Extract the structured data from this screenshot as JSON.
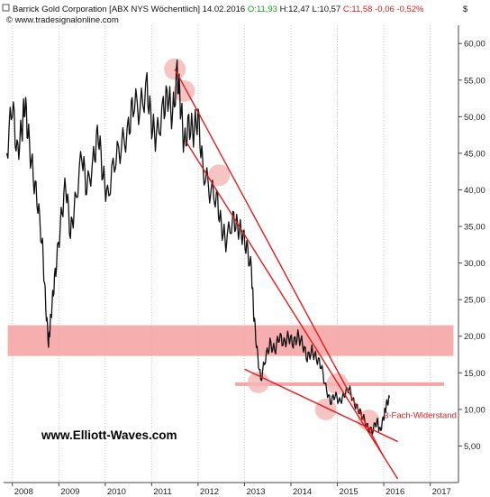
{
  "header": {
    "title": "Barrick Gold Corporation [ABX NYS  Wöchentlich]",
    "date": "14.02.2016",
    "open_label": "O:",
    "open": "11,93",
    "high_label": "H:",
    "high": "12,47",
    "low_label": "L:",
    "low": "10,57",
    "close_label": "C:",
    "close": "11,58",
    "change": "-0,06",
    "change_pct": "-0,52%",
    "source": "© www.tradesignalonline.com",
    "currency": "$"
  },
  "watermark": "www.Elliott-Waves.com",
  "colors": {
    "price": "#111111",
    "trendline": "#e31b1b",
    "zone": "#f4a0a0",
    "circle": "#f5b5b5",
    "open_green": "#1a9a1a",
    "close_red": "#d62020",
    "grid": "#c8c8c8"
  },
  "chart_data": {
    "type": "line",
    "title": "",
    "xlabel": "",
    "ylabel": "",
    "x_ticks": [
      "2008",
      "2009",
      "2010",
      "2011",
      "2012",
      "2013",
      "2014",
      "2015",
      "2016",
      "2017"
    ],
    "y_ticks": [
      "5,00",
      "10,00",
      "15,00",
      "20,00",
      "25,00",
      "30,00",
      "35,00",
      "40,00",
      "45,00",
      "50,00",
      "55,00",
      "60,00"
    ],
    "ylim": [
      0,
      62
    ],
    "xlim": [
      2007.85,
      2017.55
    ],
    "grid": "vertical dotted",
    "series": [
      {
        "style": "weekly close",
        "x": [
          2007.88,
          2008.0,
          2008.1,
          2008.2,
          2008.27,
          2008.35,
          2008.45,
          2008.55,
          2008.65,
          2008.72,
          2008.78,
          2008.82,
          2008.88,
          2008.95,
          2009.05,
          2009.15,
          2009.25,
          2009.35,
          2009.5,
          2009.6,
          2009.75,
          2009.85,
          2009.95,
          2010.05,
          2010.2,
          2010.35,
          2010.5,
          2010.6,
          2010.75,
          2010.9,
          2011.0,
          2011.1,
          2011.25,
          2011.35,
          2011.45,
          2011.55,
          2011.62,
          2011.7,
          2011.8,
          2011.9,
          2012.0,
          2012.1,
          2012.25,
          2012.4,
          2012.5,
          2012.6,
          2012.75,
          2012.85,
          2012.95,
          2013.05,
          2013.15,
          2013.2,
          2013.27,
          2013.35,
          2013.45,
          2013.55,
          2013.65,
          2013.75,
          2013.85,
          2013.95,
          2014.05,
          2014.15,
          2014.25,
          2014.35,
          2014.45,
          2014.55,
          2014.65,
          2014.75,
          2014.85,
          2014.95,
          2015.05,
          2015.15,
          2015.25,
          2015.35,
          2015.45,
          2015.55,
          2015.65,
          2015.75,
          2015.85,
          2015.92,
          2016.0,
          2016.05,
          2016.12
        ],
        "y": [
          45,
          52,
          45,
          48,
          52,
          47,
          42,
          38,
          32,
          24,
          19,
          22,
          26,
          30,
          36,
          41,
          34,
          38,
          45,
          40,
          44,
          48,
          42,
          39,
          44,
          46,
          48,
          52,
          51,
          54,
          49,
          47,
          51,
          53,
          50,
          56,
          52,
          46,
          49,
          48,
          50,
          43,
          40,
          39,
          35,
          33,
          36,
          35,
          34,
          32,
          29,
          23,
          18,
          14,
          17,
          19,
          18,
          20,
          19,
          20,
          19,
          20,
          19,
          17,
          18,
          17,
          16,
          13,
          11,
          12,
          11,
          12,
          13,
          11,
          10,
          9,
          7.5,
          7,
          8.5,
          7,
          9,
          10.5,
          11.6
        ]
      }
    ],
    "overlays": {
      "trendlines": [
        {
          "from": [
            2011.5,
            56.5
          ],
          "to": [
            2016.0,
            3.5
          ]
        },
        {
          "from": [
            2011.75,
            46.5
          ],
          "to": [
            2016.3,
            0.5
          ]
        },
        {
          "from": [
            2013.0,
            15.5
          ],
          "to": [
            2016.3,
            5.6
          ]
        }
      ],
      "resistance_zone": {
        "from_x": 2007.9,
        "to_x": 2017.5,
        "y_low": 17.3,
        "y_high": 21.5
      },
      "resistance_band": {
        "from_x": 2012.8,
        "to_x": 2017.3,
        "y_low": 13.2,
        "y_high": 13.7
      },
      "circles": [
        {
          "x": 2011.5,
          "y": 56.5
        },
        {
          "x": 2011.7,
          "y": 53.5
        },
        {
          "x": 2012.45,
          "y": 42.0
        },
        {
          "x": 2013.3,
          "y": 13.7
        },
        {
          "x": 2014.75,
          "y": 10.0
        },
        {
          "x": 2015.0,
          "y": 13.5
        },
        {
          "x": 2015.67,
          "y": 8.5
        }
      ],
      "annotation": {
        "text": "3-Fach-Widerstand",
        "x": 2016.0,
        "y": 8.8
      }
    }
  }
}
